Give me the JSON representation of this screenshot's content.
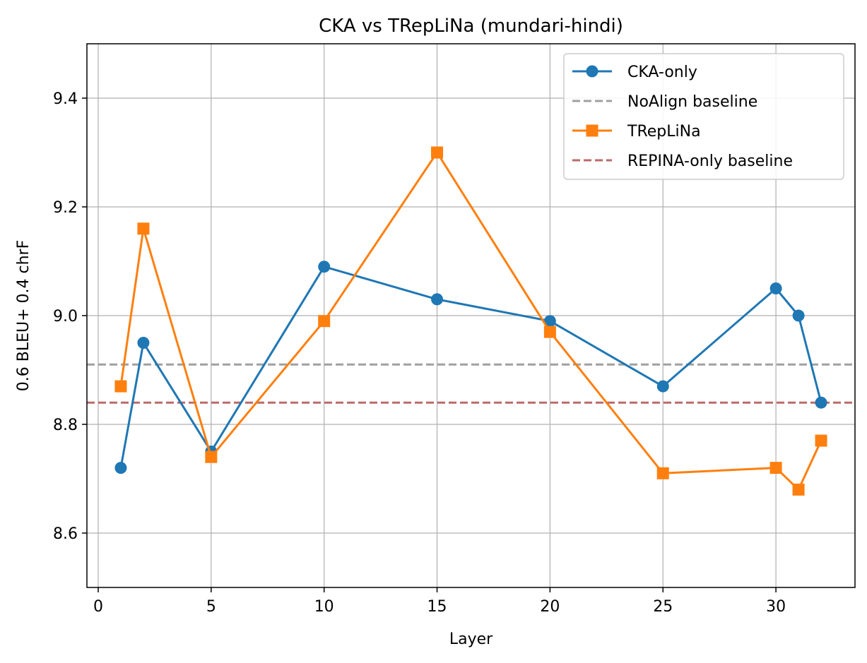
{
  "chart_data": {
    "type": "line",
    "title": "CKA vs TRepLiNa (mundari-hindi)",
    "xlabel": "Layer",
    "ylabel": "0.6 BLEU+ 0.4 chrF",
    "xlim": [
      -0.5,
      33.5
    ],
    "ylim": [
      8.5,
      9.5
    ],
    "xticks": [
      0,
      5,
      10,
      15,
      20,
      25,
      30
    ],
    "yticks": [
      8.6,
      8.8,
      9.0,
      9.2,
      9.4
    ],
    "xtick_labels": [
      "0",
      "5",
      "10",
      "15",
      "20",
      "25",
      "30"
    ],
    "ytick_labels": [
      "8.6",
      "8.8",
      "9.0",
      "9.2",
      "9.4"
    ],
    "grid": true,
    "legend_position": "top-right",
    "series": [
      {
        "name": "CKA-only",
        "marker": "circle",
        "color": "#1f77b4",
        "x": [
          1,
          2,
          5,
          10,
          15,
          20,
          25,
          30,
          31,
          32
        ],
        "values": [
          8.72,
          8.95,
          8.75,
          9.09,
          9.03,
          8.99,
          8.87,
          9.05,
          9.0,
          8.84
        ]
      },
      {
        "name": "TRepLiNa",
        "marker": "square",
        "color": "#ff7f0e",
        "x": [
          1,
          2,
          5,
          10,
          15,
          20,
          25,
          30,
          31,
          32
        ],
        "values": [
          8.87,
          9.16,
          8.74,
          8.99,
          9.3,
          8.97,
          8.71,
          8.72,
          8.68,
          8.77
        ]
      }
    ],
    "baselines": [
      {
        "name": "NoAlign baseline",
        "value": 8.91,
        "color": "#a0a0a0",
        "style": "dashed"
      },
      {
        "name": "REPINA-only baseline",
        "value": 8.84,
        "color": "#bc6b68",
        "style": "dashed"
      }
    ],
    "legend_order": [
      "CKA-only",
      "NoAlign baseline",
      "TRepLiNa",
      "REPINA-only baseline"
    ]
  }
}
